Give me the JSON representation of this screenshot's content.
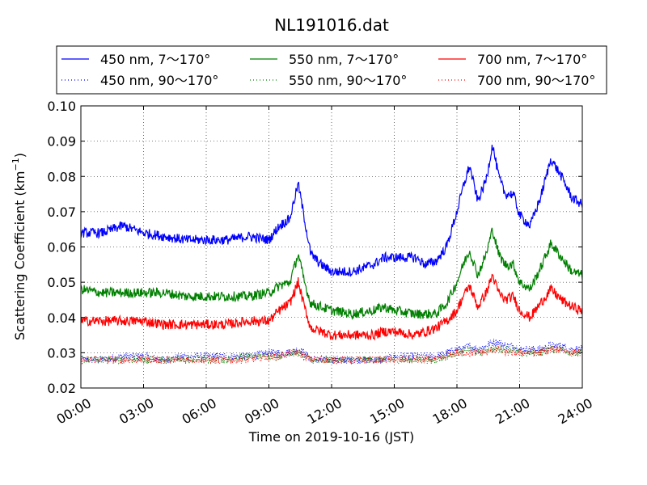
{
  "chart_data": {
    "type": "line",
    "title": "NL191016.dat",
    "xlabel": "Time on 2019-10-16 (JST)",
    "ylabel_main": "Scattering Coefficient (km",
    "ylabel_sup": "−1",
    "ylabel_close": ")",
    "xlim": [
      0,
      24
    ],
    "ylim": [
      0.02,
      0.1
    ],
    "x_ticks": [
      0,
      3,
      6,
      9,
      12,
      15,
      18,
      21,
      24
    ],
    "x_tick_labels": [
      "00:00",
      "03:00",
      "06:00",
      "09:00",
      "12:00",
      "15:00",
      "18:00",
      "21:00",
      "24:00"
    ],
    "y_ticks": [
      0.02,
      0.03,
      0.04,
      0.05,
      0.06,
      0.07,
      0.08,
      0.09,
      0.1
    ],
    "y_tick_labels": [
      "0.02",
      "0.03",
      "0.04",
      "0.05",
      "0.06",
      "0.07",
      "0.08",
      "0.09",
      "0.10"
    ],
    "grid": true,
    "legend_placement": "top, above plot, 3 columns",
    "x": [
      0,
      1,
      2,
      3,
      4,
      5,
      6,
      7,
      8,
      9,
      9.5,
      10,
      10.4,
      10.7,
      11,
      11.5,
      12,
      13,
      14,
      14.5,
      15,
      16,
      16.5,
      17,
      17.5,
      18,
      18.3,
      18.6,
      19,
      19.4,
      19.7,
      20,
      20.3,
      20.7,
      21,
      21.5,
      22,
      22.5,
      23,
      23.5,
      24
    ],
    "series": [
      {
        "name": "450 nm, 7～170°",
        "color": "#0000ff",
        "style": "solid",
        "values": [
          0.064,
          0.064,
          0.066,
          0.064,
          0.063,
          0.062,
          0.062,
          0.062,
          0.063,
          0.062,
          0.066,
          0.068,
          0.078,
          0.068,
          0.058,
          0.055,
          0.053,
          0.053,
          0.055,
          0.057,
          0.057,
          0.057,
          0.055,
          0.056,
          0.06,
          0.07,
          0.077,
          0.083,
          0.073,
          0.079,
          0.089,
          0.08,
          0.075,
          0.075,
          0.069,
          0.066,
          0.074,
          0.085,
          0.08,
          0.074,
          0.072
        ]
      },
      {
        "name": "550 nm, 7～170°",
        "color": "#008000",
        "style": "solid",
        "values": [
          0.048,
          0.047,
          0.047,
          0.047,
          0.047,
          0.046,
          0.046,
          0.046,
          0.046,
          0.047,
          0.049,
          0.05,
          0.058,
          0.05,
          0.044,
          0.043,
          0.042,
          0.041,
          0.042,
          0.043,
          0.042,
          0.041,
          0.041,
          0.041,
          0.044,
          0.05,
          0.055,
          0.059,
          0.052,
          0.058,
          0.065,
          0.058,
          0.055,
          0.055,
          0.05,
          0.048,
          0.054,
          0.061,
          0.057,
          0.053,
          0.052
        ]
      },
      {
        "name": "700 nm, 7～170°",
        "color": "#ff0000",
        "style": "solid",
        "values": [
          0.039,
          0.039,
          0.039,
          0.039,
          0.038,
          0.038,
          0.038,
          0.038,
          0.039,
          0.039,
          0.042,
          0.044,
          0.05,
          0.043,
          0.037,
          0.036,
          0.035,
          0.035,
          0.035,
          0.036,
          0.036,
          0.035,
          0.036,
          0.037,
          0.039,
          0.042,
          0.046,
          0.049,
          0.043,
          0.047,
          0.052,
          0.047,
          0.045,
          0.046,
          0.042,
          0.04,
          0.044,
          0.048,
          0.045,
          0.043,
          0.042
        ]
      },
      {
        "name": "450 nm, 90～170°",
        "color": "#0000ff",
        "style": "dotted",
        "values": [
          0.028,
          0.028,
          0.029,
          0.029,
          0.028,
          0.029,
          0.029,
          0.029,
          0.029,
          0.03,
          0.03,
          0.03,
          0.031,
          0.03,
          0.028,
          0.028,
          0.028,
          0.028,
          0.028,
          0.028,
          0.029,
          0.029,
          0.029,
          0.029,
          0.03,
          0.031,
          0.031,
          0.032,
          0.031,
          0.032,
          0.033,
          0.033,
          0.032,
          0.032,
          0.031,
          0.031,
          0.031,
          0.032,
          0.032,
          0.031,
          0.031
        ]
      },
      {
        "name": "550 nm, 90～170°",
        "color": "#008000",
        "style": "dotted",
        "values": [
          0.028,
          0.028,
          0.028,
          0.028,
          0.028,
          0.028,
          0.028,
          0.028,
          0.029,
          0.029,
          0.029,
          0.03,
          0.03,
          0.029,
          0.028,
          0.028,
          0.028,
          0.028,
          0.028,
          0.028,
          0.028,
          0.028,
          0.028,
          0.028,
          0.029,
          0.03,
          0.03,
          0.031,
          0.03,
          0.031,
          0.031,
          0.031,
          0.031,
          0.031,
          0.03,
          0.03,
          0.03,
          0.031,
          0.031,
          0.03,
          0.03
        ]
      },
      {
        "name": "700 nm, 90～170°",
        "color": "#ff0000",
        "style": "dotted",
        "values": [
          0.028,
          0.028,
          0.028,
          0.028,
          0.028,
          0.028,
          0.028,
          0.028,
          0.028,
          0.029,
          0.029,
          0.03,
          0.03,
          0.029,
          0.028,
          0.028,
          0.028,
          0.028,
          0.028,
          0.028,
          0.028,
          0.028,
          0.028,
          0.028,
          0.029,
          0.03,
          0.03,
          0.03,
          0.03,
          0.03,
          0.031,
          0.031,
          0.03,
          0.03,
          0.03,
          0.03,
          0.03,
          0.031,
          0.031,
          0.03,
          0.03
        ]
      }
    ],
    "legend_order": [
      0,
      1,
      2,
      3,
      4,
      5
    ]
  }
}
